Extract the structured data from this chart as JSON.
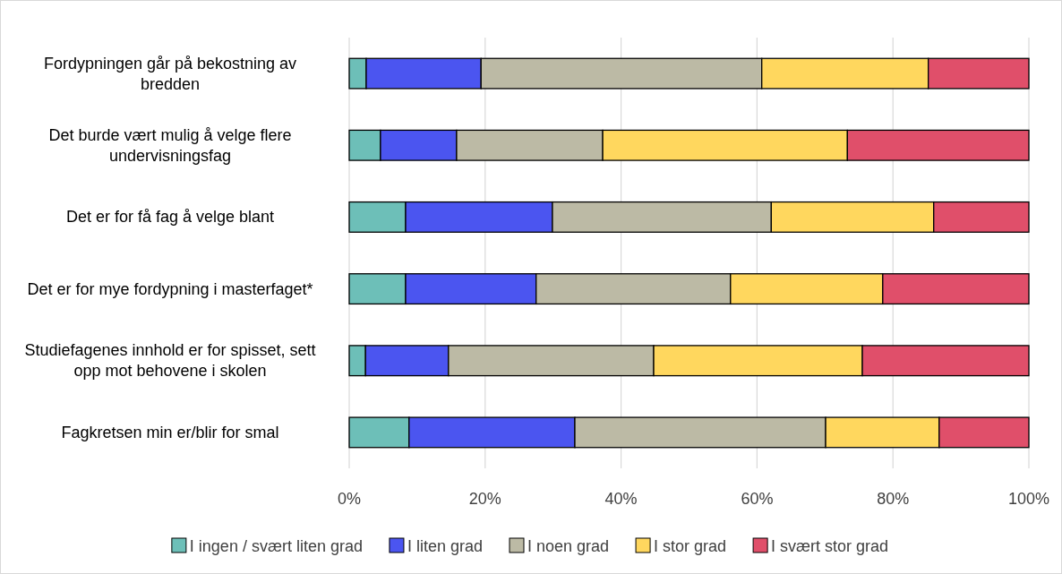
{
  "chart_data": {
    "type": "bar",
    "orientation": "horizontal",
    "stacked": true,
    "categories": [
      "Fordypningen går på bekostning av bredden",
      "Det burde vært mulig å velge flere undervisningsfag",
      "Det er for få fag å velge blant",
      "Det er for mye fordypning i masterfaget*",
      "Studiefagenes innhold er for spisset, sett opp mot behovene i skolen",
      "Fagkretsen min er/blir for smal"
    ],
    "series": [
      {
        "name": "I ingen / svært liten grad",
        "color": "#6dbfb8",
        "values": [
          2.5,
          4.6,
          8.3,
          8.3,
          2.4,
          8.8
        ]
      },
      {
        "name": "I liten grad",
        "color": "#4b55f0",
        "values": [
          16.9,
          11.2,
          21.6,
          19.2,
          12.2,
          24.4
        ]
      },
      {
        "name": "I noen grad",
        "color": "#bcbaa5",
        "values": [
          41.3,
          21.5,
          32.2,
          28.6,
          30.2,
          36.9
        ]
      },
      {
        "name": "I stor grad",
        "color": "#ffd75e",
        "values": [
          24.5,
          36.0,
          23.9,
          22.4,
          30.7,
          16.7
        ]
      },
      {
        "name": "I svært stor grad",
        "color": "#e04f6a",
        "values": [
          14.8,
          26.7,
          14.0,
          21.5,
          24.5,
          13.2
        ]
      }
    ],
    "xlim": [
      0,
      100
    ],
    "xticks": [
      {
        "value": 0,
        "label": "0%"
      },
      {
        "value": 20,
        "label": "20%"
      },
      {
        "value": 40,
        "label": "40%"
      },
      {
        "value": 60,
        "label": "60%"
      },
      {
        "value": 80,
        "label": "80%"
      },
      {
        "value": 100,
        "label": "100%"
      }
    ],
    "grid": "x",
    "legend": "bottom"
  }
}
